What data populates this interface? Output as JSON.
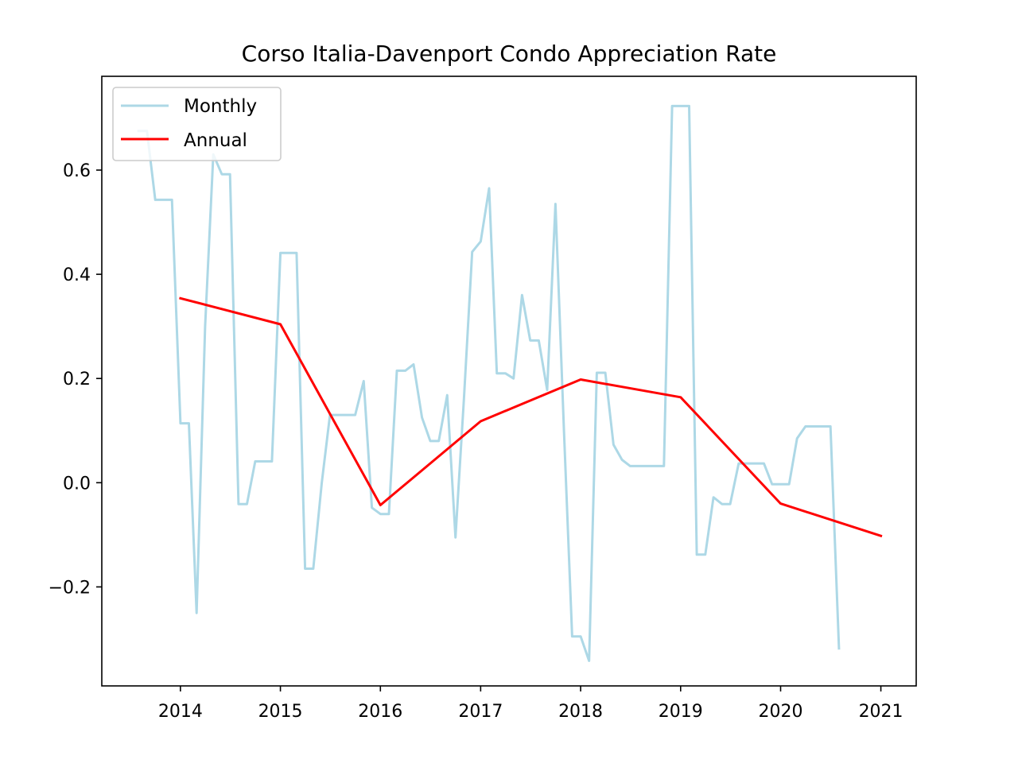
{
  "chart_data": {
    "type": "line",
    "title": "Corso Italia-Davenport Condo Appreciation Rate",
    "xlabel": "",
    "ylabel": "",
    "x_axis": "date",
    "xlim": [
      "2013-03-20",
      "2021-05-10"
    ],
    "ylim": [
      -0.39,
      0.78
    ],
    "xticks": [
      "2014",
      "2015",
      "2016",
      "2017",
      "2018",
      "2019",
      "2020",
      "2021"
    ],
    "yticks": [
      -0.2,
      0.0,
      0.2,
      0.4,
      0.6
    ],
    "ytick_labels": [
      "−0.2",
      "0.0",
      "0.2",
      "0.4",
      "0.6"
    ],
    "grid": false,
    "legend": {
      "position": "top-left"
    },
    "series": [
      {
        "name": "Monthly",
        "color": "#add8e6",
        "points": [
          [
            "2013-08-01",
            0.675
          ],
          [
            "2013-09-01",
            0.675
          ],
          [
            "2013-10-01",
            0.543
          ],
          [
            "2013-11-01",
            0.543
          ],
          [
            "2013-12-01",
            0.543
          ],
          [
            "2014-01-01",
            0.114
          ],
          [
            "2014-02-01",
            0.114
          ],
          [
            "2014-03-01",
            -0.25
          ],
          [
            "2014-04-01",
            0.3
          ],
          [
            "2014-05-01",
            0.63
          ],
          [
            "2014-06-01",
            0.592
          ],
          [
            "2014-07-01",
            0.592
          ],
          [
            "2014-08-01",
            -0.041
          ],
          [
            "2014-09-01",
            -0.041
          ],
          [
            "2014-10-01",
            0.041
          ],
          [
            "2014-11-01",
            0.041
          ],
          [
            "2014-12-01",
            0.041
          ],
          [
            "2015-01-01",
            0.441
          ],
          [
            "2015-02-01",
            0.441
          ],
          [
            "2015-03-01",
            0.441
          ],
          [
            "2015-04-01",
            -0.165
          ],
          [
            "2015-05-01",
            -0.165
          ],
          [
            "2015-06-01",
            0.0
          ],
          [
            "2015-07-01",
            0.13
          ],
          [
            "2015-08-01",
            0.13
          ],
          [
            "2015-09-01",
            0.13
          ],
          [
            "2015-10-01",
            0.13
          ],
          [
            "2015-11-01",
            0.195
          ],
          [
            "2015-12-01",
            -0.048
          ],
          [
            "2016-01-01",
            -0.06
          ],
          [
            "2016-02-01",
            -0.06
          ],
          [
            "2016-03-01",
            0.215
          ],
          [
            "2016-04-01",
            0.215
          ],
          [
            "2016-05-01",
            0.227
          ],
          [
            "2016-06-01",
            0.125
          ],
          [
            "2016-07-01",
            0.08
          ],
          [
            "2016-08-01",
            0.08
          ],
          [
            "2016-09-01",
            0.168
          ],
          [
            "2016-10-01",
            -0.105
          ],
          [
            "2016-11-01",
            0.16
          ],
          [
            "2016-12-01",
            0.443
          ],
          [
            "2017-01-01",
            0.463
          ],
          [
            "2017-02-01",
            0.565
          ],
          [
            "2017-03-01",
            0.21
          ],
          [
            "2017-04-01",
            0.21
          ],
          [
            "2017-05-01",
            0.2
          ],
          [
            "2017-06-01",
            0.36
          ],
          [
            "2017-07-01",
            0.273
          ],
          [
            "2017-08-01",
            0.273
          ],
          [
            "2017-09-01",
            0.178
          ],
          [
            "2017-10-01",
            0.535
          ],
          [
            "2017-11-01",
            0.1
          ],
          [
            "2017-12-01",
            -0.295
          ],
          [
            "2018-01-01",
            -0.295
          ],
          [
            "2018-02-01",
            -0.342
          ],
          [
            "2018-03-01",
            0.211
          ],
          [
            "2018-04-01",
            0.211
          ],
          [
            "2018-05-01",
            0.073
          ],
          [
            "2018-06-01",
            0.044
          ],
          [
            "2018-07-01",
            0.032
          ],
          [
            "2018-08-01",
            0.032
          ],
          [
            "2018-09-01",
            0.032
          ],
          [
            "2018-10-01",
            0.032
          ],
          [
            "2018-11-01",
            0.032
          ],
          [
            "2018-12-01",
            0.723
          ],
          [
            "2019-01-01",
            0.723
          ],
          [
            "2019-02-01",
            0.723
          ],
          [
            "2019-03-01",
            -0.138
          ],
          [
            "2019-04-01",
            -0.138
          ],
          [
            "2019-05-01",
            -0.028
          ],
          [
            "2019-06-01",
            -0.041
          ],
          [
            "2019-07-01",
            -0.041
          ],
          [
            "2019-08-01",
            0.037
          ],
          [
            "2019-09-01",
            0.037
          ],
          [
            "2019-10-01",
            0.037
          ],
          [
            "2019-11-01",
            0.037
          ],
          [
            "2019-12-01",
            -0.003
          ],
          [
            "2020-01-01",
            -0.003
          ],
          [
            "2020-02-01",
            -0.003
          ],
          [
            "2020-03-01",
            0.085
          ],
          [
            "2020-04-01",
            0.108
          ],
          [
            "2020-05-01",
            0.108
          ],
          [
            "2020-06-01",
            0.108
          ],
          [
            "2020-07-01",
            0.108
          ],
          [
            "2020-08-01",
            -0.318
          ]
        ]
      },
      {
        "name": "Annual",
        "color": "#ff0000",
        "points": [
          [
            "2014-01-01",
            0.354
          ],
          [
            "2015-01-01",
            0.304
          ],
          [
            "2016-01-01",
            -0.043
          ],
          [
            "2017-01-01",
            0.118
          ],
          [
            "2018-01-01",
            0.198
          ],
          [
            "2019-01-01",
            0.164
          ],
          [
            "2020-01-01",
            -0.04
          ],
          [
            "2021-01-01",
            -0.102
          ]
        ]
      }
    ]
  }
}
